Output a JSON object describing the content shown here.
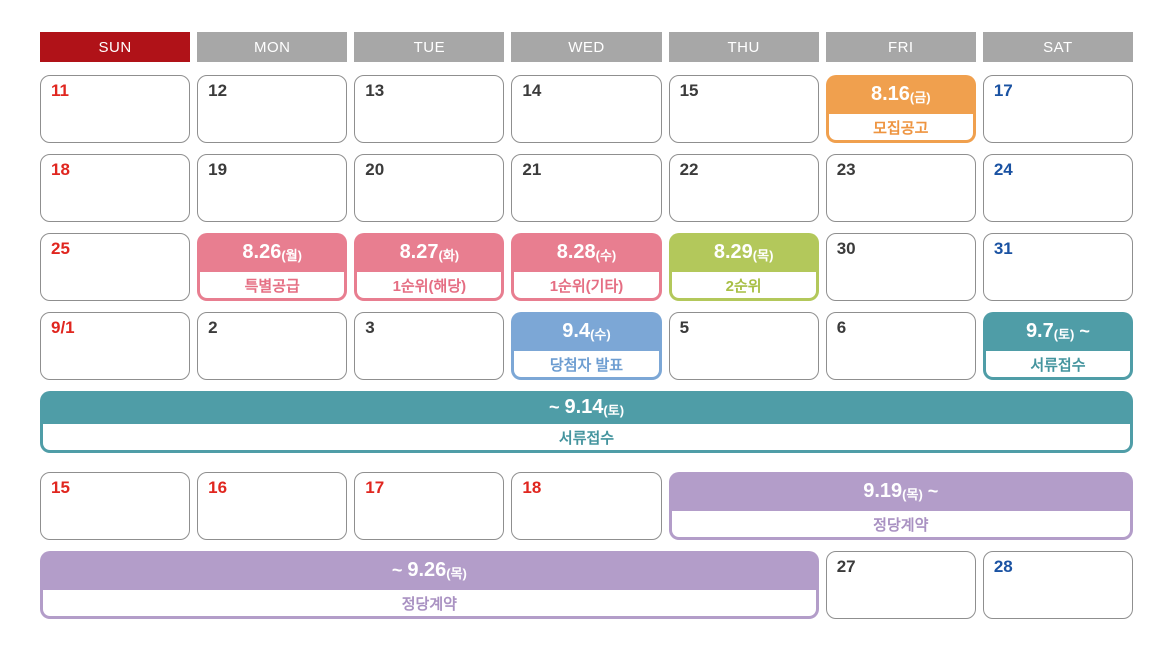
{
  "header": {
    "days": [
      "SUN",
      "MON",
      "TUE",
      "WED",
      "THU",
      "FRI",
      "SAT"
    ]
  },
  "days": {
    "w1": [
      "11",
      "12",
      "13",
      "14",
      "15"
    ],
    "w1_sat": "17",
    "w2": [
      "18",
      "19",
      "20",
      "21",
      "22",
      "23",
      "24"
    ],
    "w3_sun": "25",
    "w3_fri": "30",
    "w3_sat": "31",
    "w4": [
      "9/1",
      "2",
      "3"
    ],
    "w4_thu": "5",
    "w4_fri": "6",
    "w6": [
      "15",
      "16",
      "17",
      "18"
    ],
    "w7_fri": "27",
    "w7_sat": "28"
  },
  "events": {
    "notice": {
      "date": "8.16",
      "dow": "(금)",
      "label": "모집공고"
    },
    "special": {
      "date": "8.26",
      "dow": "(월)",
      "label": "특별공급"
    },
    "rank1_local": {
      "date": "8.27",
      "dow": "(화)",
      "label": "1순위(해당)"
    },
    "rank1_other": {
      "date": "8.28",
      "dow": "(수)",
      "label": "1순위(기타)"
    },
    "rank2": {
      "date": "8.29",
      "dow": "(목)",
      "label": "2순위"
    },
    "winner": {
      "date": "9.4",
      "dow": "(수)",
      "label": "당첨자 발표"
    },
    "docs_start": {
      "date": "9.7",
      "dow": "(토)",
      "tilde": " ~",
      "label": "서류접수"
    },
    "docs_until": {
      "tilde": "~ ",
      "date": "9.14",
      "dow": "(토)",
      "label": "서류접수"
    },
    "contract_start": {
      "date": "9.19",
      "dow": "(목)",
      "tilde": " ~",
      "label": "정당계약"
    },
    "contract_until": {
      "tilde": "~ ",
      "date": "9.26",
      "dow": "(목)",
      "label": "정당계약"
    }
  },
  "colors": {
    "sun_header_bg": "#b01218",
    "weekday_header_bg": "#a7a7a7",
    "holiday_red": "#e0261f",
    "saturday_blue": "#1a52a2",
    "weekday_text": "#3b3b3b",
    "cell_border": "#8f8f8f",
    "notice_orange": "#f0a04e",
    "supply_pink": "#e87e90",
    "rank2_green": "#b3c85b",
    "winner_blue": "#7ca7d6",
    "docs_teal": "#4f9da7",
    "contract_purple": "#b39dc9"
  }
}
